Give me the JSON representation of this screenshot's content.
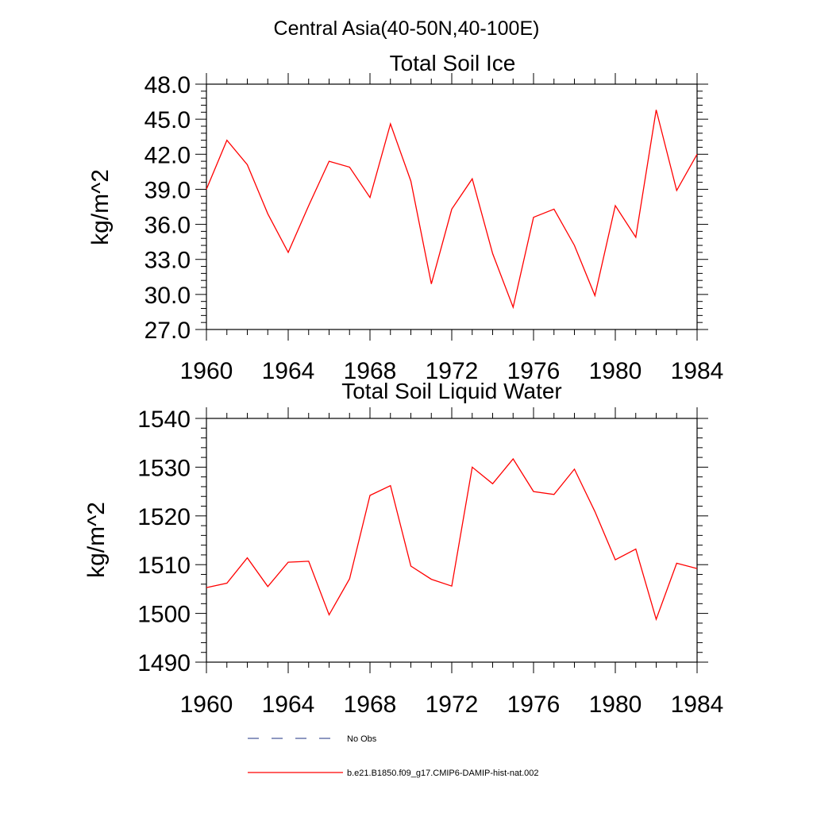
{
  "figure_title": "Central Asia(40-50N,40-100E)",
  "chart_data": [
    {
      "type": "line",
      "title": "Total Soil Ice",
      "xlabel": "",
      "ylabel": "kg/m^2",
      "xlim": [
        1960,
        1984
      ],
      "ylim": [
        27.0,
        48.0
      ],
      "xticks": [
        "1960",
        "1964",
        "1968",
        "1972",
        "1976",
        "1980",
        "1984"
      ],
      "yticks": [
        "27.0",
        "30.0",
        "33.0",
        "36.0",
        "39.0",
        "42.0",
        "45.0",
        "48.0"
      ],
      "grid": false,
      "x": [
        1960,
        1961,
        1962,
        1963,
        1964,
        1965,
        1966,
        1967,
        1968,
        1969,
        1970,
        1971,
        1972,
        1973,
        1974,
        1975,
        1976,
        1977,
        1978,
        1979,
        1980,
        1981,
        1982,
        1983,
        1984
      ],
      "series": [
        {
          "name": "b.e21.B1850.f09_g17.CMIP6-DAMIP-hist-nat.002",
          "color": "#ff0000",
          "values": [
            39.0,
            43.2,
            41.1,
            36.9,
            33.6,
            37.6,
            41.4,
            40.9,
            38.3,
            44.6,
            39.7,
            30.9,
            37.3,
            39.9,
            33.5,
            28.9,
            36.6,
            37.3,
            34.2,
            29.9,
            37.6,
            34.9,
            45.8,
            38.9,
            42.0
          ]
        }
      ]
    },
    {
      "type": "line",
      "title": "Total Soil Liquid Water",
      "xlabel": "",
      "ylabel": "kg/m^2",
      "xlim": [
        1960,
        1984
      ],
      "ylim": [
        1490,
        1540
      ],
      "xticks": [
        "1960",
        "1964",
        "1968",
        "1972",
        "1976",
        "1980",
        "1984"
      ],
      "yticks": [
        "1490",
        "1500",
        "1510",
        "1520",
        "1530",
        "1540"
      ],
      "grid": false,
      "x": [
        1960,
        1961,
        1962,
        1963,
        1964,
        1965,
        1966,
        1967,
        1968,
        1969,
        1970,
        1971,
        1972,
        1973,
        1974,
        1975,
        1976,
        1977,
        1978,
        1979,
        1980,
        1981,
        1982,
        1983,
        1984
      ],
      "series": [
        {
          "name": "b.e21.B1850.f09_g17.CMIP6-DAMIP-hist-nat.002",
          "color": "#ff0000",
          "values": [
            1505.3,
            1506.2,
            1511.4,
            1505.5,
            1510.5,
            1510.7,
            1499.7,
            1507.1,
            1524.2,
            1526.2,
            1509.7,
            1507.0,
            1505.6,
            1530.0,
            1526.6,
            1531.7,
            1525.0,
            1524.4,
            1529.6,
            1520.9,
            1511.0,
            1513.2,
            1498.8,
            1510.3,
            1509.2
          ]
        }
      ]
    }
  ],
  "legend": {
    "placement": "bottom",
    "entries": [
      {
        "label": "No Obs",
        "style": "dashed",
        "color": "#4a5a9a"
      },
      {
        "label": "b.e21.B1850.f09_g17.CMIP6-DAMIP-hist-nat.002",
        "style": "solid",
        "color": "#ff0000"
      }
    ]
  }
}
